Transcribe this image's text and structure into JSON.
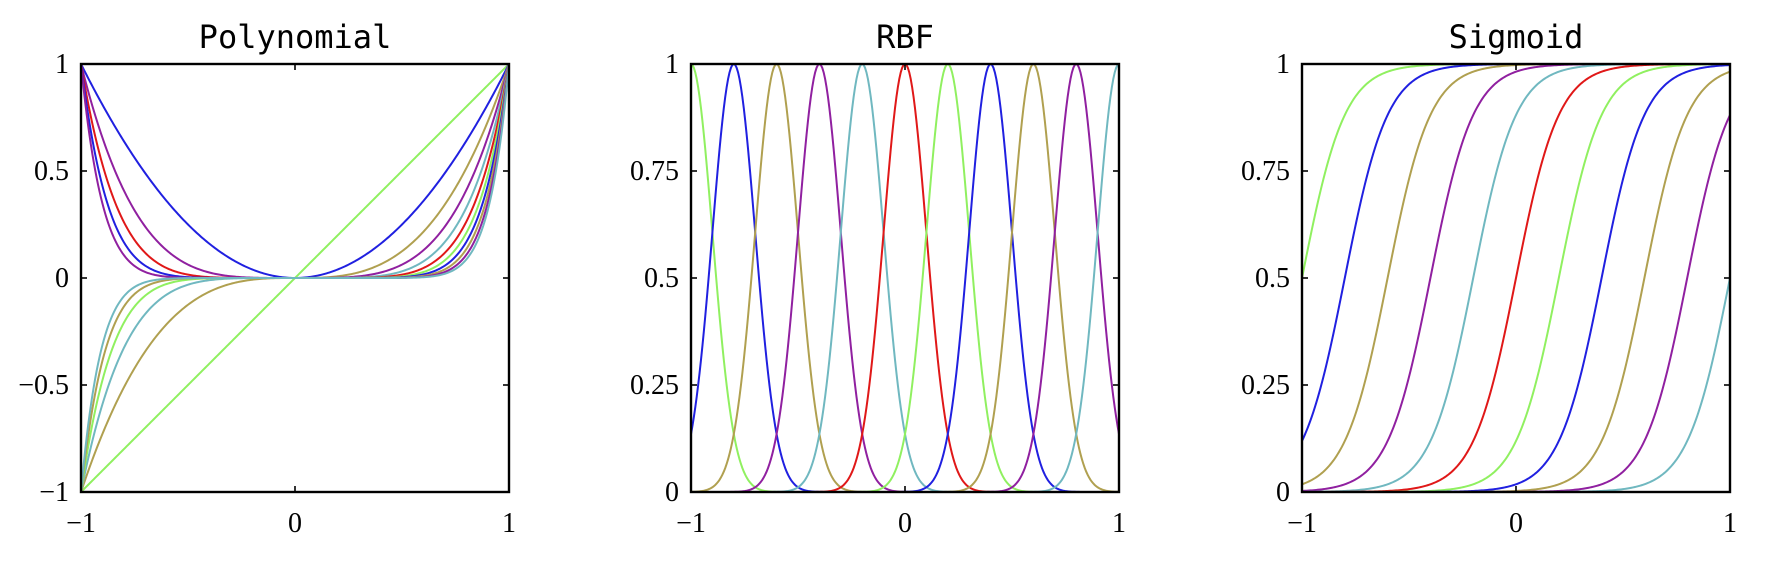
{
  "palette": [
    "#2020e0",
    "#b0a050",
    "#9020a0",
    "#70b8c0",
    "#e01818",
    "#90f060"
  ],
  "chart_data": [
    {
      "type": "line",
      "title": "Polynomial",
      "xlabel": "",
      "ylabel": "",
      "xlim": [
        -1,
        1
      ],
      "ylim": [
        -1,
        1
      ],
      "x_ticks": [
        -1,
        0,
        1
      ],
      "y_ticks": [
        -1,
        -0.5,
        0,
        0.5,
        1
      ],
      "x_tick_labels": [
        "−1",
        "0",
        "1"
      ],
      "y_tick_labels": [
        "−1",
        "−0.5",
        "0",
        "0.5",
        "1"
      ],
      "grid": false,
      "legend": "none",
      "basis": "x^j",
      "exponents": [
        1,
        2,
        3,
        4,
        5,
        6,
        7,
        8,
        9,
        10,
        11
      ],
      "series_colors": [
        "#90f060",
        "#2020e0",
        "#b0a050",
        "#9020a0",
        "#70b8c0",
        "#e01818",
        "#90f060",
        "#2020e0",
        "#b0a050",
        "#9020a0",
        "#70b8c0"
      ]
    },
    {
      "type": "line",
      "title": "RBF",
      "xlabel": "",
      "ylabel": "",
      "xlim": [
        -1,
        1
      ],
      "ylim": [
        0,
        1
      ],
      "x_ticks": [
        -1,
        0,
        1
      ],
      "y_ticks": [
        0,
        0.25,
        0.5,
        0.75,
        1
      ],
      "x_tick_labels": [
        "−1",
        "0",
        "1"
      ],
      "y_tick_labels": [
        "0",
        "0.25",
        "0.5",
        "0.75",
        "1"
      ],
      "grid": false,
      "legend": "none",
      "basis": "exp(-(x-c)^2/(2s^2))",
      "width_s": 0.1,
      "centers": [
        -1.0,
        -0.8,
        -0.6,
        -0.4,
        -0.2,
        0.0,
        0.2,
        0.4,
        0.6,
        0.8,
        1.0
      ],
      "series_colors": [
        "#90f060",
        "#2020e0",
        "#b0a050",
        "#9020a0",
        "#70b8c0",
        "#e01818",
        "#90f060",
        "#2020e0",
        "#b0a050",
        "#9020a0",
        "#70b8c0"
      ]
    },
    {
      "type": "line",
      "title": "Sigmoid",
      "xlabel": "",
      "ylabel": "",
      "xlim": [
        -1,
        1
      ],
      "ylim": [
        0,
        1
      ],
      "x_ticks": [
        -1,
        0,
        1
      ],
      "y_ticks": [
        0,
        0.25,
        0.5,
        0.75,
        1
      ],
      "x_tick_labels": [
        "−1",
        "0",
        "1"
      ],
      "y_tick_labels": [
        "0",
        "0.25",
        "0.5",
        "0.75",
        "1"
      ],
      "grid": false,
      "legend": "none",
      "basis": "1/(1+exp(-(x-c)/s))",
      "width_s": 0.1,
      "centers": [
        -1.0,
        -0.8,
        -0.6,
        -0.4,
        -0.2,
        0.0,
        0.2,
        0.4,
        0.6,
        0.8,
        1.0
      ],
      "series_colors": [
        "#90f060",
        "#2020e0",
        "#b0a050",
        "#9020a0",
        "#70b8c0",
        "#e01818",
        "#90f060",
        "#2020e0",
        "#b0a050",
        "#9020a0",
        "#70b8c0"
      ]
    }
  ]
}
